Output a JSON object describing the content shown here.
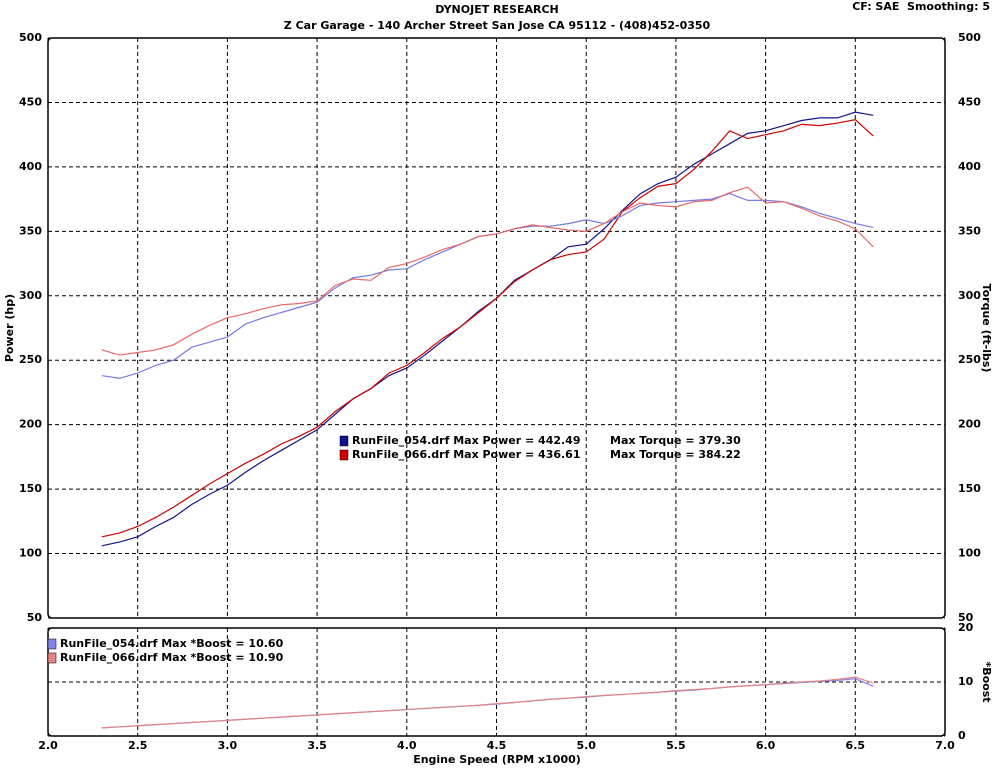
{
  "chart_data": [
    {
      "type": "line",
      "title": "DYNOJET RESEARCH",
      "subtitle": "Z Car Garage - 140 Archer Street San Jose CA 95112 - (408)452-0350",
      "annotation": "CF: SAE  Smoothing: 5",
      "y_label": "Power (hp)",
      "y2_label": "Torque (ft-lbs)",
      "grid": true,
      "ylim": [
        50,
        500
      ],
      "yticks": [
        50,
        100,
        150,
        200,
        250,
        300,
        350,
        400,
        450,
        500
      ],
      "y2lim": [
        50,
        500
      ],
      "y2ticks": [
        50,
        100,
        150,
        200,
        250,
        300,
        350,
        400,
        450,
        500
      ],
      "x": [
        2.3,
        2.4,
        2.5,
        2.6,
        2.7,
        2.8,
        2.9,
        3.0,
        3.1,
        3.2,
        3.3,
        3.4,
        3.5,
        3.6,
        3.7,
        3.8,
        3.9,
        4.0,
        4.1,
        4.2,
        4.3,
        4.4,
        4.5,
        4.6,
        4.7,
        4.8,
        4.9,
        5.0,
        5.1,
        5.2,
        5.3,
        5.4,
        5.5,
        5.6,
        5.7,
        5.8,
        5.9,
        6.0,
        6.1,
        6.2,
        6.3,
        6.4,
        6.5,
        6.6
      ],
      "series": [
        {
          "name": "RunFile_054.drf Max Power = 442.49",
          "color": "#14148c",
          "values": [
            106,
            109,
            113,
            121,
            128,
            138,
            146,
            153,
            163,
            172,
            180,
            188,
            196,
            208,
            220,
            228,
            238,
            244,
            254,
            265,
            276,
            288,
            298,
            312,
            320,
            328,
            338,
            340,
            352,
            366,
            379,
            387,
            392,
            402,
            410,
            418,
            426,
            428,
            432,
            436,
            438,
            438,
            442.49,
            440
          ]
        },
        {
          "name": "RunFile_066.drf Max Power = 436.61",
          "color": "#d00000",
          "values": [
            113,
            116,
            121,
            128,
            136,
            145,
            154,
            162,
            170,
            177,
            185,
            191,
            198,
            210,
            220,
            228,
            240,
            246,
            256,
            267,
            276,
            287,
            298,
            311,
            320,
            328,
            332,
            334,
            344,
            365,
            376,
            385,
            387,
            398,
            412,
            428,
            422,
            425,
            428,
            433,
            432,
            434,
            436.61,
            424
          ]
        },
        {
          "name": "Max Torque = 379.30",
          "color": "#7878e4",
          "axis": "y2",
          "values": [
            238,
            236,
            240,
            246,
            250,
            260,
            264,
            268,
            278,
            283,
            287,
            291,
            295,
            306,
            314,
            316,
            320,
            321,
            328,
            334,
            340,
            346,
            348,
            352,
            354,
            354,
            356,
            359,
            356,
            362,
            370,
            372,
            373,
            374,
            375,
            379.3,
            374,
            374,
            373,
            369,
            364,
            360,
            356,
            353
          ]
        },
        {
          "name": "Max Torque = 384.22",
          "color": "#e86868",
          "axis": "y2",
          "values": [
            258,
            254,
            256,
            258,
            262,
            270,
            277,
            283,
            286,
            290,
            293,
            294,
            296,
            308,
            313,
            312,
            322,
            325,
            330,
            336,
            340,
            346,
            348,
            352,
            355,
            353,
            351,
            350,
            356,
            365,
            372,
            370,
            369,
            373,
            374,
            380,
            384.22,
            372,
            373,
            368,
            362,
            358,
            352,
            338
          ]
        }
      ]
    },
    {
      "type": "line",
      "x_label": "Engine Speed (RPM x1000)",
      "y2_label": "*Boost",
      "grid": true,
      "xlim": [
        2.0,
        7.0
      ],
      "xticks": [
        {
          "value": 2.0,
          "label": "2.0"
        },
        2.5,
        {
          "value": 3.0,
          "label": "3.0"
        },
        3.5,
        {
          "value": 4.0,
          "label": "4.0"
        },
        4.5,
        {
          "value": 5.0,
          "label": "5.0"
        },
        5.5,
        {
          "value": 6.0,
          "label": "6.0"
        },
        6.5,
        {
          "value": 7.0,
          "label": "7.0"
        }
      ],
      "y2lim": [
        0,
        20
      ],
      "y2ticks": [
        0,
        10,
        20
      ],
      "series": [
        {
          "name": "RunFile_054.drf Max *Boost = 10.60",
          "color": "#8484e8",
          "axis": "y2",
          "values": [
            1.5,
            1.7,
            1.9,
            2.1,
            2.3,
            2.5,
            2.7,
            2.9,
            3.1,
            3.3,
            3.5,
            3.7,
            3.9,
            4.1,
            4.3,
            4.5,
            4.7,
            4.9,
            5.1,
            5.3,
            5.5,
            5.7,
            5.9,
            6.2,
            6.5,
            6.8,
            7.0,
            7.2,
            7.5,
            7.7,
            7.9,
            8.1,
            8.3,
            8.5,
            8.8,
            9.1,
            9.3,
            9.5,
            9.7,
            9.9,
            10.1,
            10.3,
            10.6,
            9.2
          ]
        },
        {
          "name": "RunFile_066.drf Max *Boost = 10.90",
          "color": "#e48484",
          "axis": "y2",
          "values": [
            1.5,
            1.7,
            1.9,
            2.1,
            2.3,
            2.5,
            2.7,
            2.9,
            3.1,
            3.3,
            3.5,
            3.7,
            3.9,
            4.1,
            4.3,
            4.5,
            4.7,
            4.9,
            5.1,
            5.3,
            5.5,
            5.7,
            6.0,
            6.2,
            6.5,
            6.8,
            7.0,
            7.3,
            7.5,
            7.7,
            7.9,
            8.1,
            8.4,
            8.6,
            8.8,
            9.1,
            9.3,
            9.5,
            9.8,
            10.0,
            10.2,
            10.5,
            10.9,
            9.8
          ]
        }
      ]
    }
  ]
}
